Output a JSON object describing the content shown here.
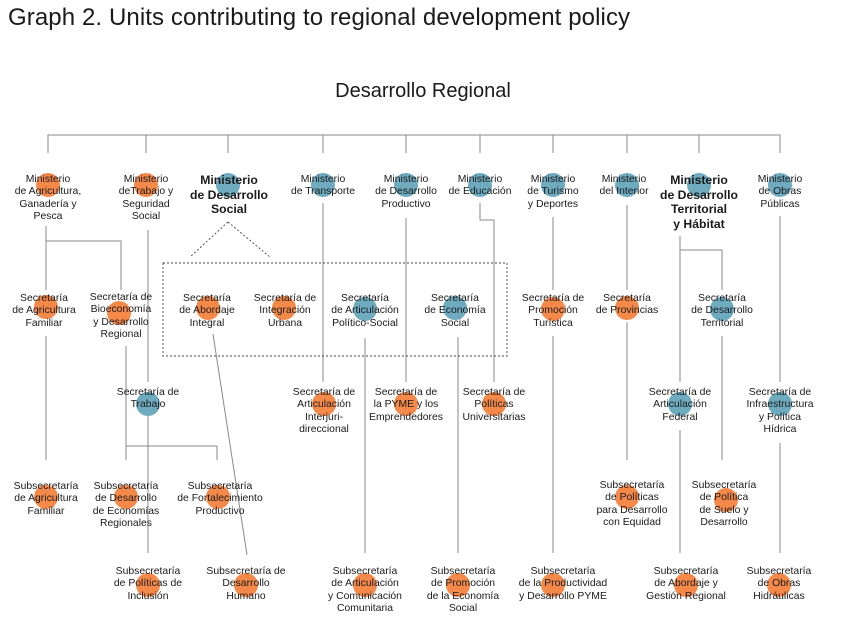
{
  "header": {
    "title": "Graph 2. Units contributing to regional development policy",
    "root": "Desarrollo Regional"
  },
  "colors": {
    "orange": "#f5894a",
    "blue": "#6fabbf",
    "line": "#8a8a8a"
  },
  "nodes": [
    {
      "id": "min-agricultura",
      "text": "Ministerio\nde Agricultura,\nGanadería y\nPesca",
      "color": "orange"
    },
    {
      "id": "min-trabajo",
      "text": "Ministerio\ndeTrabajo y\nSeguridad\nSocial",
      "color": "orange"
    },
    {
      "id": "min-desarrollo-social",
      "text": "Ministerio\nde Desarrollo\nSocial",
      "color": "blue",
      "bold": true
    },
    {
      "id": "min-transporte",
      "text": "Ministerio\nde Transporte",
      "color": "blue"
    },
    {
      "id": "min-desarrollo-productivo",
      "text": "Ministerio\nde Desarrollo\nProductivo",
      "color": "blue"
    },
    {
      "id": "min-educacion",
      "text": "Ministerio\nde Educación",
      "color": "blue"
    },
    {
      "id": "min-turismo",
      "text": "Ministerio\nde Turismo\ny Deportes",
      "color": "blue"
    },
    {
      "id": "min-interior",
      "text": "Ministerio\ndel Interior",
      "color": "blue"
    },
    {
      "id": "min-desarrollo-territorial",
      "text": "Ministerio\nde Desarrollo\nTerritorial\ny Hábitat",
      "color": "blue",
      "bold": true
    },
    {
      "id": "min-obras-publicas",
      "text": "Ministerio\nde Obras\nPúblicas",
      "color": "blue"
    },
    {
      "id": "sec-agricultura-familiar",
      "text": "Secretaría\nde Agricultura\nFamiliar",
      "color": "orange"
    },
    {
      "id": "sec-bioeconomia",
      "text": "Secretaría de\nBioeconomía\ny Desarrollo\nRegional",
      "color": "orange"
    },
    {
      "id": "sec-abordaje-integral",
      "text": "Secretaría\nde Abordaje\nIntegral",
      "color": "orange"
    },
    {
      "id": "sec-integracion-urbana",
      "text": "Secretaría de\nIntegración\nUrbana",
      "color": "orange"
    },
    {
      "id": "sec-articulacion-politico-social",
      "text": "Secretaría\nde Articulación\nPolítico-Social",
      "color": "blue"
    },
    {
      "id": "sec-economia-social",
      "text": "Secretaría\nde Economía\nSocial",
      "color": "blue"
    },
    {
      "id": "sec-promocion-turistica",
      "text": "Secretaría de\nPromoción\nTurística",
      "color": "orange"
    },
    {
      "id": "sec-provincias",
      "text": "Secretaría\nde Provincias",
      "color": "orange"
    },
    {
      "id": "sec-desarrollo-territorial",
      "text": "Secretaría\nde Desarrollo\nTerritorial",
      "color": "blue"
    },
    {
      "id": "sec-trabajo",
      "text": "Secretaría de\nTrabajo",
      "color": "blue"
    },
    {
      "id": "sec-articulacion-interjurisdiccional",
      "text": "Secretaría de\nArticulación\nInterjuri-\ndireccional",
      "color": "orange"
    },
    {
      "id": "sec-pyme",
      "text": "Secretaría de\nla PYME y los\nEmprendedores",
      "color": "orange"
    },
    {
      "id": "sec-politicas-universitarias",
      "text": "Secretaría de\nPolíticas\nUniversitarias",
      "color": "orange"
    },
    {
      "id": "sec-articulacion-federal",
      "text": "Secretaría de\nArticulación\nFederal",
      "color": "blue"
    },
    {
      "id": "sec-infraestructura",
      "text": "Secretaría de\nInfraestructura\ny Política\nHídrica",
      "color": "blue"
    },
    {
      "id": "sub-agricultura-familiar",
      "text": "Subsecretaría\nde Agricultura\nFamiliar",
      "color": "orange"
    },
    {
      "id": "sub-desarrollo-economias",
      "text": "Subsecretaría\nde Desarrollo\nde Economías\nRegionales",
      "color": "orange"
    },
    {
      "id": "sub-fortalecimiento",
      "text": "Subsecretaría\nde Fortalecimiento\nProductivo",
      "color": "orange"
    },
    {
      "id": "sub-politicas-desarrollo",
      "text": "Subsecretaría\nde Políticas\npara Desarrollo\ncon Equidad",
      "color": "orange"
    },
    {
      "id": "sub-politica-suelo",
      "text": "Subsecretaría\nde Política\nde Suelo y\nDesarrollo",
      "color": "orange"
    },
    {
      "id": "sub-politicas-inclusion",
      "text": "Subsecretaría\nde Políticas de\nInclusión",
      "color": "orange"
    },
    {
      "id": "sub-desarrollo-humano",
      "text": "Subsecretaría de\nDesarrollo\nHumano",
      "color": "orange"
    },
    {
      "id": "sub-articulacion-comunicacion",
      "text": "Subsecretaría\nde Articulación\ny Comunicación\nComunitaria",
      "color": "orange"
    },
    {
      "id": "sub-promocion-economia",
      "text": "Subsecretaría\nde Promoción\nde la Economía\nSocial",
      "color": "orange"
    },
    {
      "id": "sub-productividad-pyme",
      "text": "Subsecretaría\nde la Productividad\ny Desarrollo PYME",
      "color": "orange"
    },
    {
      "id": "sub-abordaje-gestion",
      "text": "Subsecretaría\nde Abordaje y\nGestión Regional",
      "color": "orange"
    },
    {
      "id": "sub-obras-hidraulicas",
      "text": "Subsecretaría\nde Obras\nHidráulicas",
      "color": "orange"
    }
  ]
}
